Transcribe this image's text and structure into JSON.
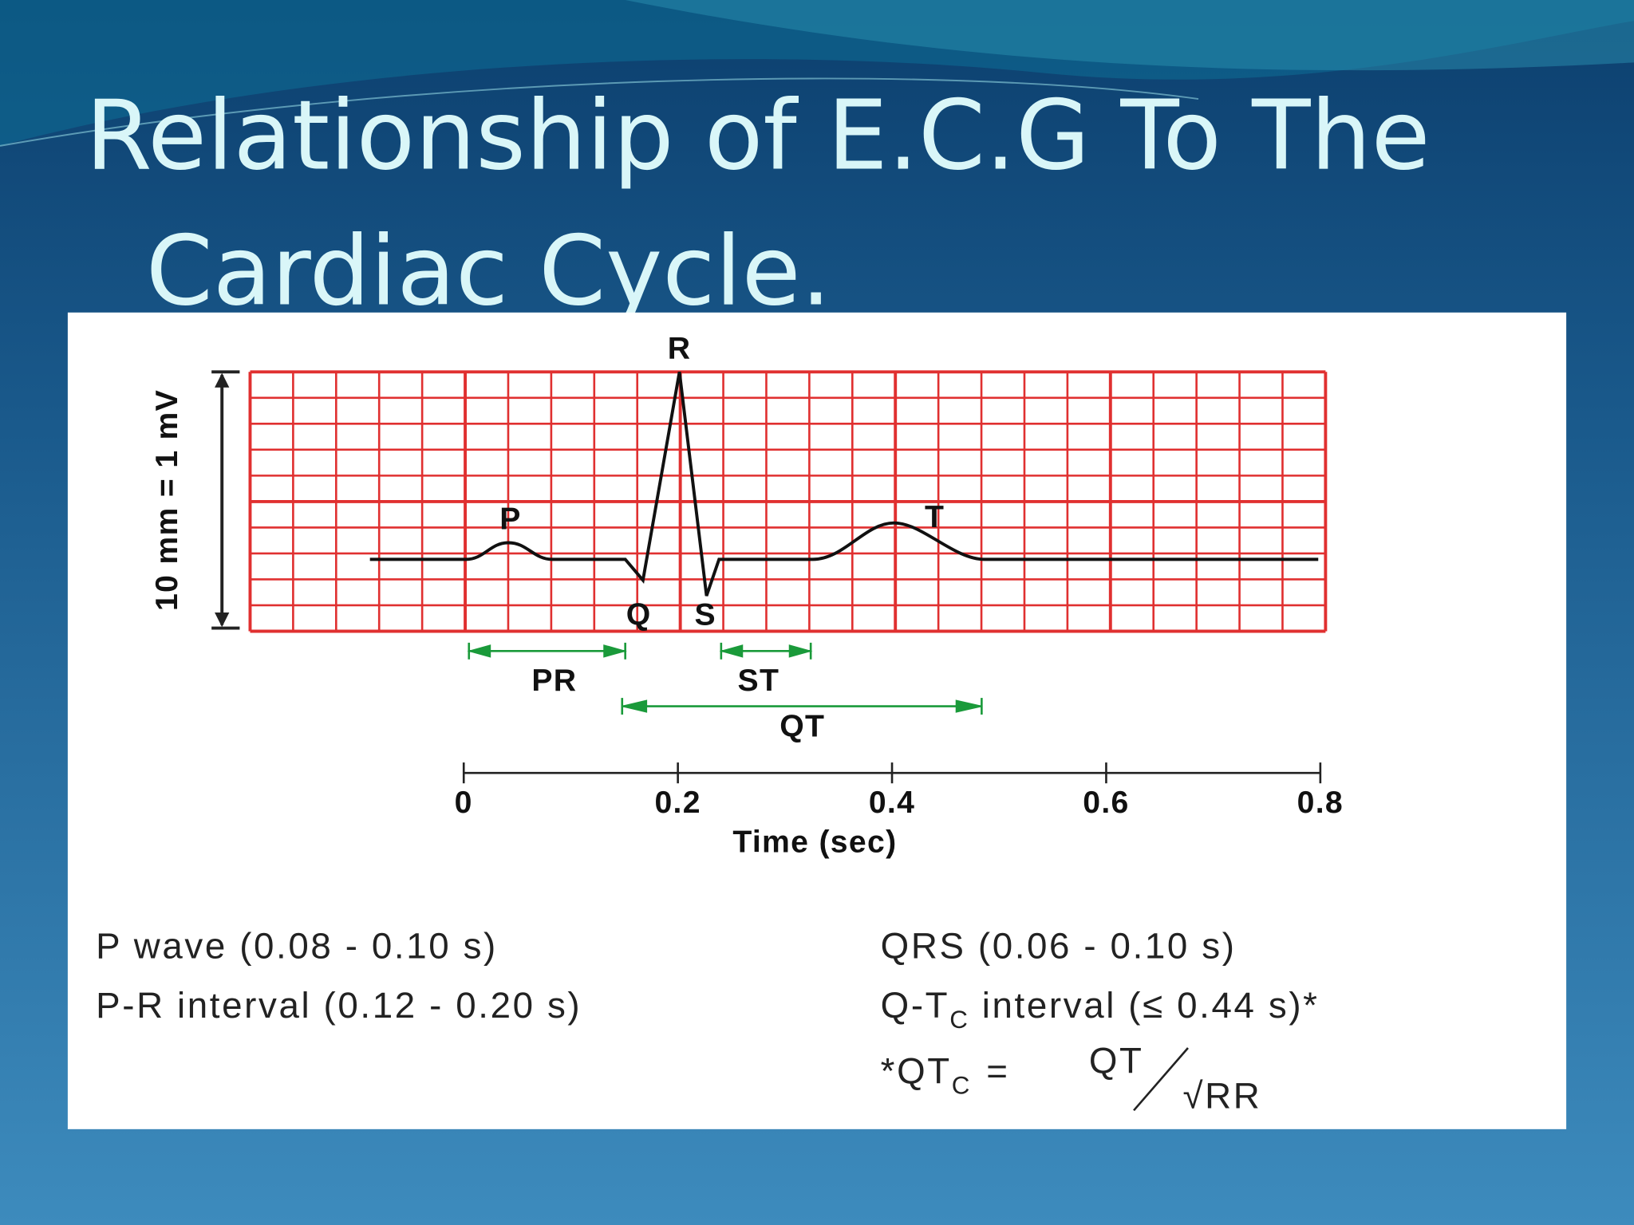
{
  "title": {
    "lines": [
      "Relationship of E.C.G To The",
      "Cardiac Cycle."
    ]
  },
  "diagram": {
    "y_label": "10 mm = 1 mV",
    "waves": {
      "R": "R",
      "P": "P",
      "T": "T",
      "Q": "Q",
      "S": "S"
    },
    "intervals": {
      "PR": "PR",
      "ST": "ST",
      "QT": "QT"
    },
    "time_axis": {
      "ticks": [
        "0",
        "0.2",
        "0.4",
        "0.6",
        "0.8"
      ],
      "label": "Time (sec)"
    }
  },
  "notes": {
    "p_wave": "P wave (0.08 - 0.10 s)",
    "pr_interval": "P-R interval (0.12 - 0.20 s)",
    "qrs": "QRS (0.06 - 0.10 s)",
    "qtc": {
      "prefix": "Q-T",
      "sub": "C",
      "rest": " interval (≤ 0.44 s)*"
    },
    "formula": {
      "lhs": "*QT",
      "sub": "C",
      "eq": "=",
      "num": "QT",
      "den": "√RR"
    }
  }
}
